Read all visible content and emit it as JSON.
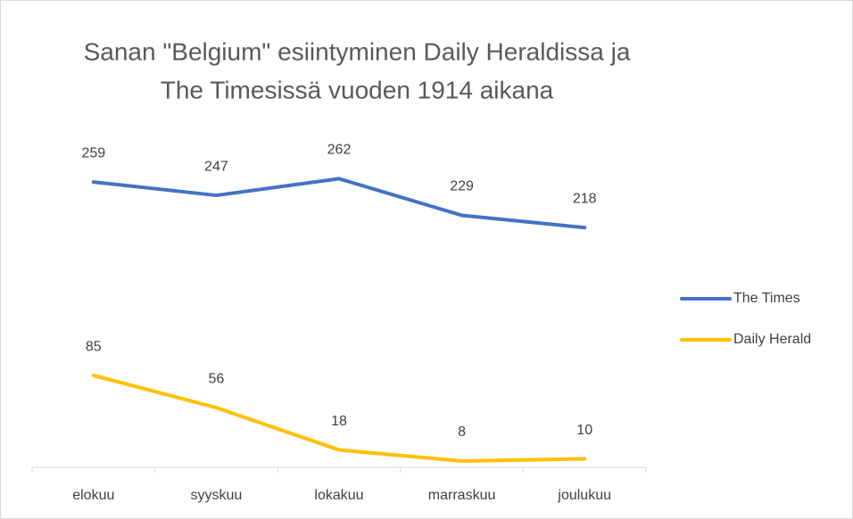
{
  "chart_data": {
    "type": "line",
    "title": [
      "Sanan \"Belgium\" esiintyminen Daily Heraldissa ja",
      "The Timesissä vuoden 1914 aikana"
    ],
    "categories": [
      "elokuu",
      "syyskuu",
      "lokakuu",
      "marraskuu",
      "joulukuu"
    ],
    "series": [
      {
        "name": "The Times",
        "color": "#4472c4",
        "values": [
          259,
          247,
          262,
          229,
          218
        ]
      },
      {
        "name": "Daily Herald",
        "color": "#ffc000",
        "values": [
          85,
          56,
          18,
          8,
          10
        ]
      }
    ],
    "ylim": [
      0,
      300
    ],
    "legend": "right"
  }
}
